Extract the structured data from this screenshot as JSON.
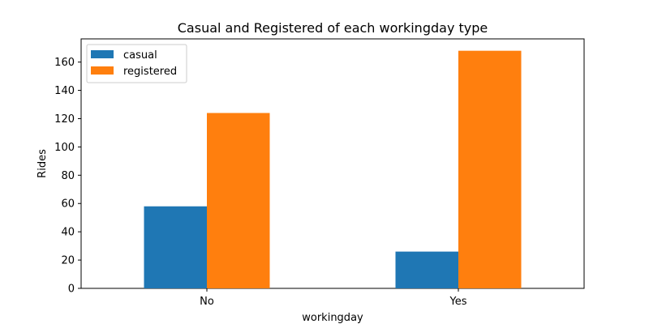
{
  "chart_data": {
    "type": "bar",
    "title": "Casual and Registered of each workingday type",
    "xlabel": "workingday",
    "ylabel": "Rides",
    "categories": [
      "No",
      "Yes"
    ],
    "series": [
      {
        "name": "casual",
        "values": [
          58,
          26
        ],
        "color": "#1f77b4"
      },
      {
        "name": "registered",
        "values": [
          124,
          168
        ],
        "color": "#ff7f0e"
      }
    ],
    "ylim": [
      0,
      176.4
    ],
    "yticks": [
      0,
      20,
      40,
      60,
      80,
      100,
      120,
      140,
      160
    ],
    "grid": false,
    "legend_position": "top-left"
  }
}
